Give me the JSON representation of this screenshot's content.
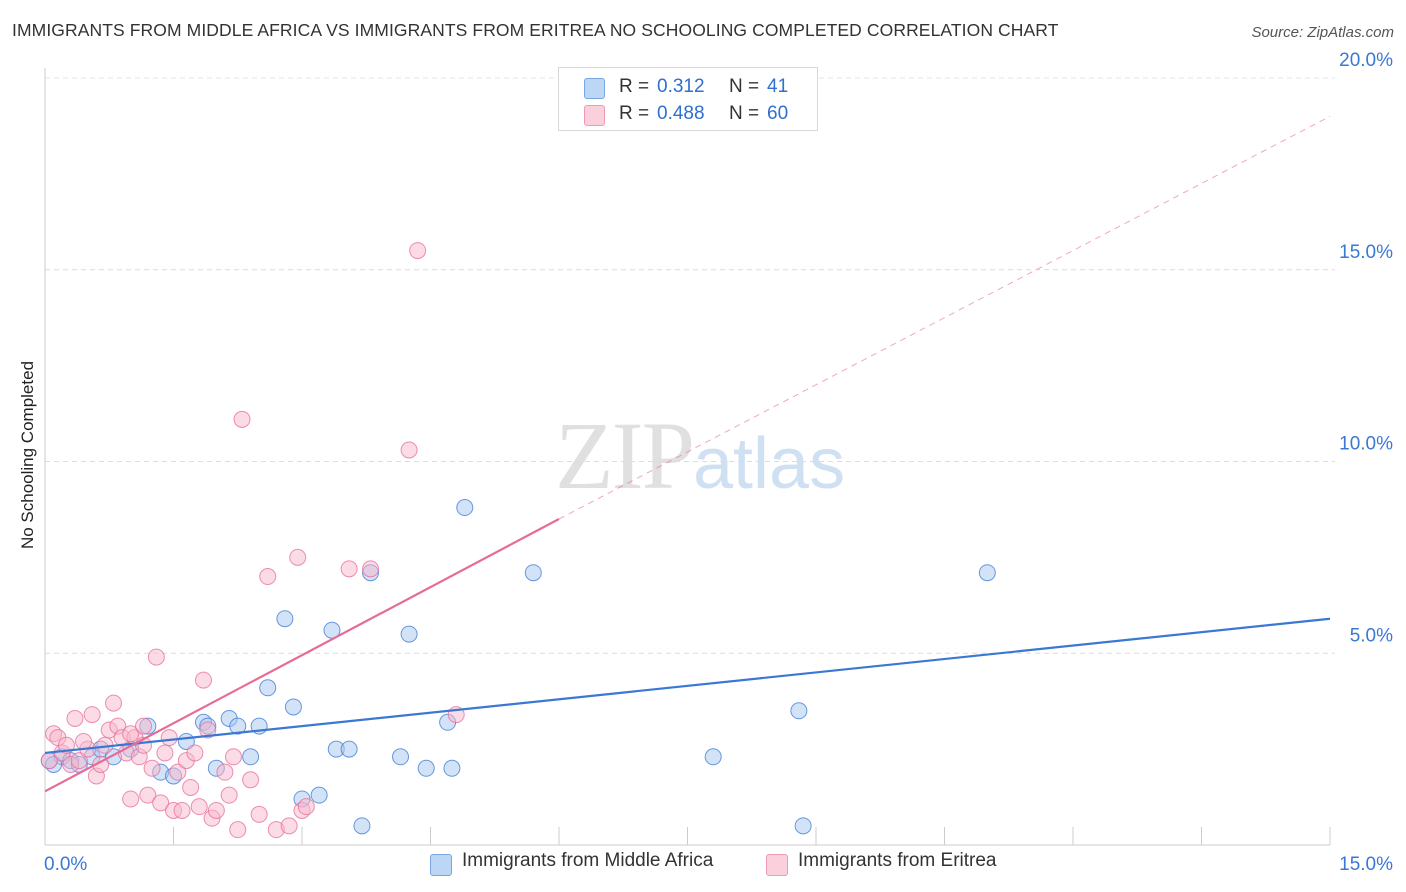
{
  "title": "IMMIGRANTS FROM MIDDLE AFRICA VS IMMIGRANTS FROM ERITREA NO SCHOOLING COMPLETED CORRELATION CHART",
  "source": "Source: ZipAtlas.com",
  "watermark": {
    "zip": "ZIP",
    "atlas": "atlas"
  },
  "legend_top": [
    {
      "r_label": "R =",
      "r_value": "0.312",
      "n_label": "N =",
      "n_value": "41",
      "color": "#a8c8f0"
    },
    {
      "r_label": "R =",
      "r_value": "0.488",
      "n_label": "N =",
      "n_value": "60",
      "color": "#f7b8cc"
    }
  ],
  "legend_bottom": [
    {
      "label": "Immigrants from Middle Africa",
      "color": "#a8c8f0"
    },
    {
      "label": "Immigrants from Eritrea",
      "color": "#f7b8cc"
    }
  ],
  "chart_data": {
    "type": "scatter",
    "title": "IMMIGRANTS FROM MIDDLE AFRICA VS IMMIGRANTS FROM ERITREA NO SCHOOLING COMPLETED CORRELATION CHART",
    "xlabel": "",
    "ylabel": "No Schooling Completed",
    "xlim": [
      0,
      15
    ],
    "ylim": [
      0,
      20
    ],
    "x_tick_labels": [
      "0.0%",
      "15.0%"
    ],
    "y_ticks": [
      5,
      10,
      15,
      20
    ],
    "y_tick_labels": [
      "5.0%",
      "10.0%",
      "15.0%",
      "20.0%"
    ],
    "grid": true,
    "legend_placement": "top-center",
    "series": [
      {
        "name": "Immigrants from Middle Africa",
        "color": "#3a78d4",
        "fill": "#a8c8f0",
        "points": [
          [
            0.05,
            2.2
          ],
          [
            0.2,
            2.3
          ],
          [
            0.3,
            2.2
          ],
          [
            0.55,
            2.3
          ],
          [
            0.65,
            2.5
          ],
          [
            0.8,
            2.3
          ],
          [
            1.0,
            2.5
          ],
          [
            1.2,
            3.1
          ],
          [
            1.35,
            1.9
          ],
          [
            1.5,
            1.8
          ],
          [
            1.65,
            2.7
          ],
          [
            1.85,
            3.2
          ],
          [
            1.9,
            3.1
          ],
          [
            2.0,
            2.0
          ],
          [
            2.15,
            3.3
          ],
          [
            2.25,
            3.1
          ],
          [
            2.4,
            2.3
          ],
          [
            2.5,
            3.1
          ],
          [
            2.6,
            4.1
          ],
          [
            2.8,
            5.9
          ],
          [
            2.9,
            3.6
          ],
          [
            3.0,
            1.2
          ],
          [
            3.2,
            1.3
          ],
          [
            3.35,
            5.6
          ],
          [
            3.4,
            2.5
          ],
          [
            3.55,
            2.5
          ],
          [
            3.7,
            0.5
          ],
          [
            3.8,
            7.1
          ],
          [
            4.15,
            2.3
          ],
          [
            4.25,
            5.5
          ],
          [
            4.45,
            2.0
          ],
          [
            4.7,
            3.2
          ],
          [
            4.75,
            2.0
          ],
          [
            4.9,
            8.8
          ],
          [
            5.7,
            7.1
          ],
          [
            7.8,
            2.3
          ],
          [
            8.8,
            3.5
          ],
          [
            8.85,
            0.5
          ],
          [
            11.0,
            7.1
          ],
          [
            0.1,
            2.1
          ],
          [
            0.4,
            2.1
          ]
        ],
        "trend": {
          "x": [
            0,
            15
          ],
          "y": [
            2.4,
            5.9
          ]
        }
      },
      {
        "name": "Immigrants from Eritrea",
        "color": "#e76b98",
        "fill": "#f7b8cc",
        "points": [
          [
            0.05,
            2.2
          ],
          [
            0.1,
            2.9
          ],
          [
            0.15,
            2.8
          ],
          [
            0.2,
            2.4
          ],
          [
            0.3,
            2.1
          ],
          [
            0.35,
            3.3
          ],
          [
            0.4,
            2.2
          ],
          [
            0.5,
            2.5
          ],
          [
            0.55,
            3.4
          ],
          [
            0.6,
            1.8
          ],
          [
            0.7,
            2.6
          ],
          [
            0.75,
            3.0
          ],
          [
            0.8,
            3.7
          ],
          [
            0.85,
            3.1
          ],
          [
            0.9,
            2.8
          ],
          [
            0.95,
            2.4
          ],
          [
            1.0,
            1.2
          ],
          [
            1.05,
            2.8
          ],
          [
            1.1,
            2.3
          ],
          [
            1.15,
            2.6
          ],
          [
            1.2,
            1.3
          ],
          [
            1.25,
            2.0
          ],
          [
            1.3,
            4.9
          ],
          [
            1.35,
            1.1
          ],
          [
            1.4,
            2.4
          ],
          [
            1.45,
            2.8
          ],
          [
            1.5,
            0.9
          ],
          [
            1.55,
            1.9
          ],
          [
            1.6,
            0.9
          ],
          [
            1.65,
            2.2
          ],
          [
            1.7,
            1.5
          ],
          [
            1.75,
            2.4
          ],
          [
            1.8,
            1.0
          ],
          [
            1.85,
            4.3
          ],
          [
            1.9,
            3.0
          ],
          [
            1.95,
            0.7
          ],
          [
            2.0,
            0.9
          ],
          [
            2.1,
            1.9
          ],
          [
            2.15,
            1.3
          ],
          [
            2.2,
            2.3
          ],
          [
            2.25,
            0.4
          ],
          [
            2.3,
            11.1
          ],
          [
            2.4,
            1.7
          ],
          [
            2.5,
            0.8
          ],
          [
            2.6,
            7.0
          ],
          [
            2.7,
            0.4
          ],
          [
            2.85,
            0.5
          ],
          [
            2.95,
            7.5
          ],
          [
            3.0,
            0.9
          ],
          [
            3.05,
            1.0
          ],
          [
            3.55,
            7.2
          ],
          [
            3.8,
            7.2
          ],
          [
            4.25,
            10.3
          ],
          [
            4.35,
            15.5
          ],
          [
            4.8,
            3.4
          ],
          [
            0.25,
            2.6
          ],
          [
            0.45,
            2.7
          ],
          [
            0.65,
            2.1
          ],
          [
            1.0,
            2.9
          ],
          [
            1.15,
            3.1
          ]
        ],
        "trend": {
          "x": [
            0,
            6
          ],
          "y": [
            1.4,
            8.5
          ]
        },
        "trend_extension": {
          "x": [
            6,
            15
          ],
          "y": [
            8.5,
            19.0
          ]
        }
      }
    ]
  }
}
